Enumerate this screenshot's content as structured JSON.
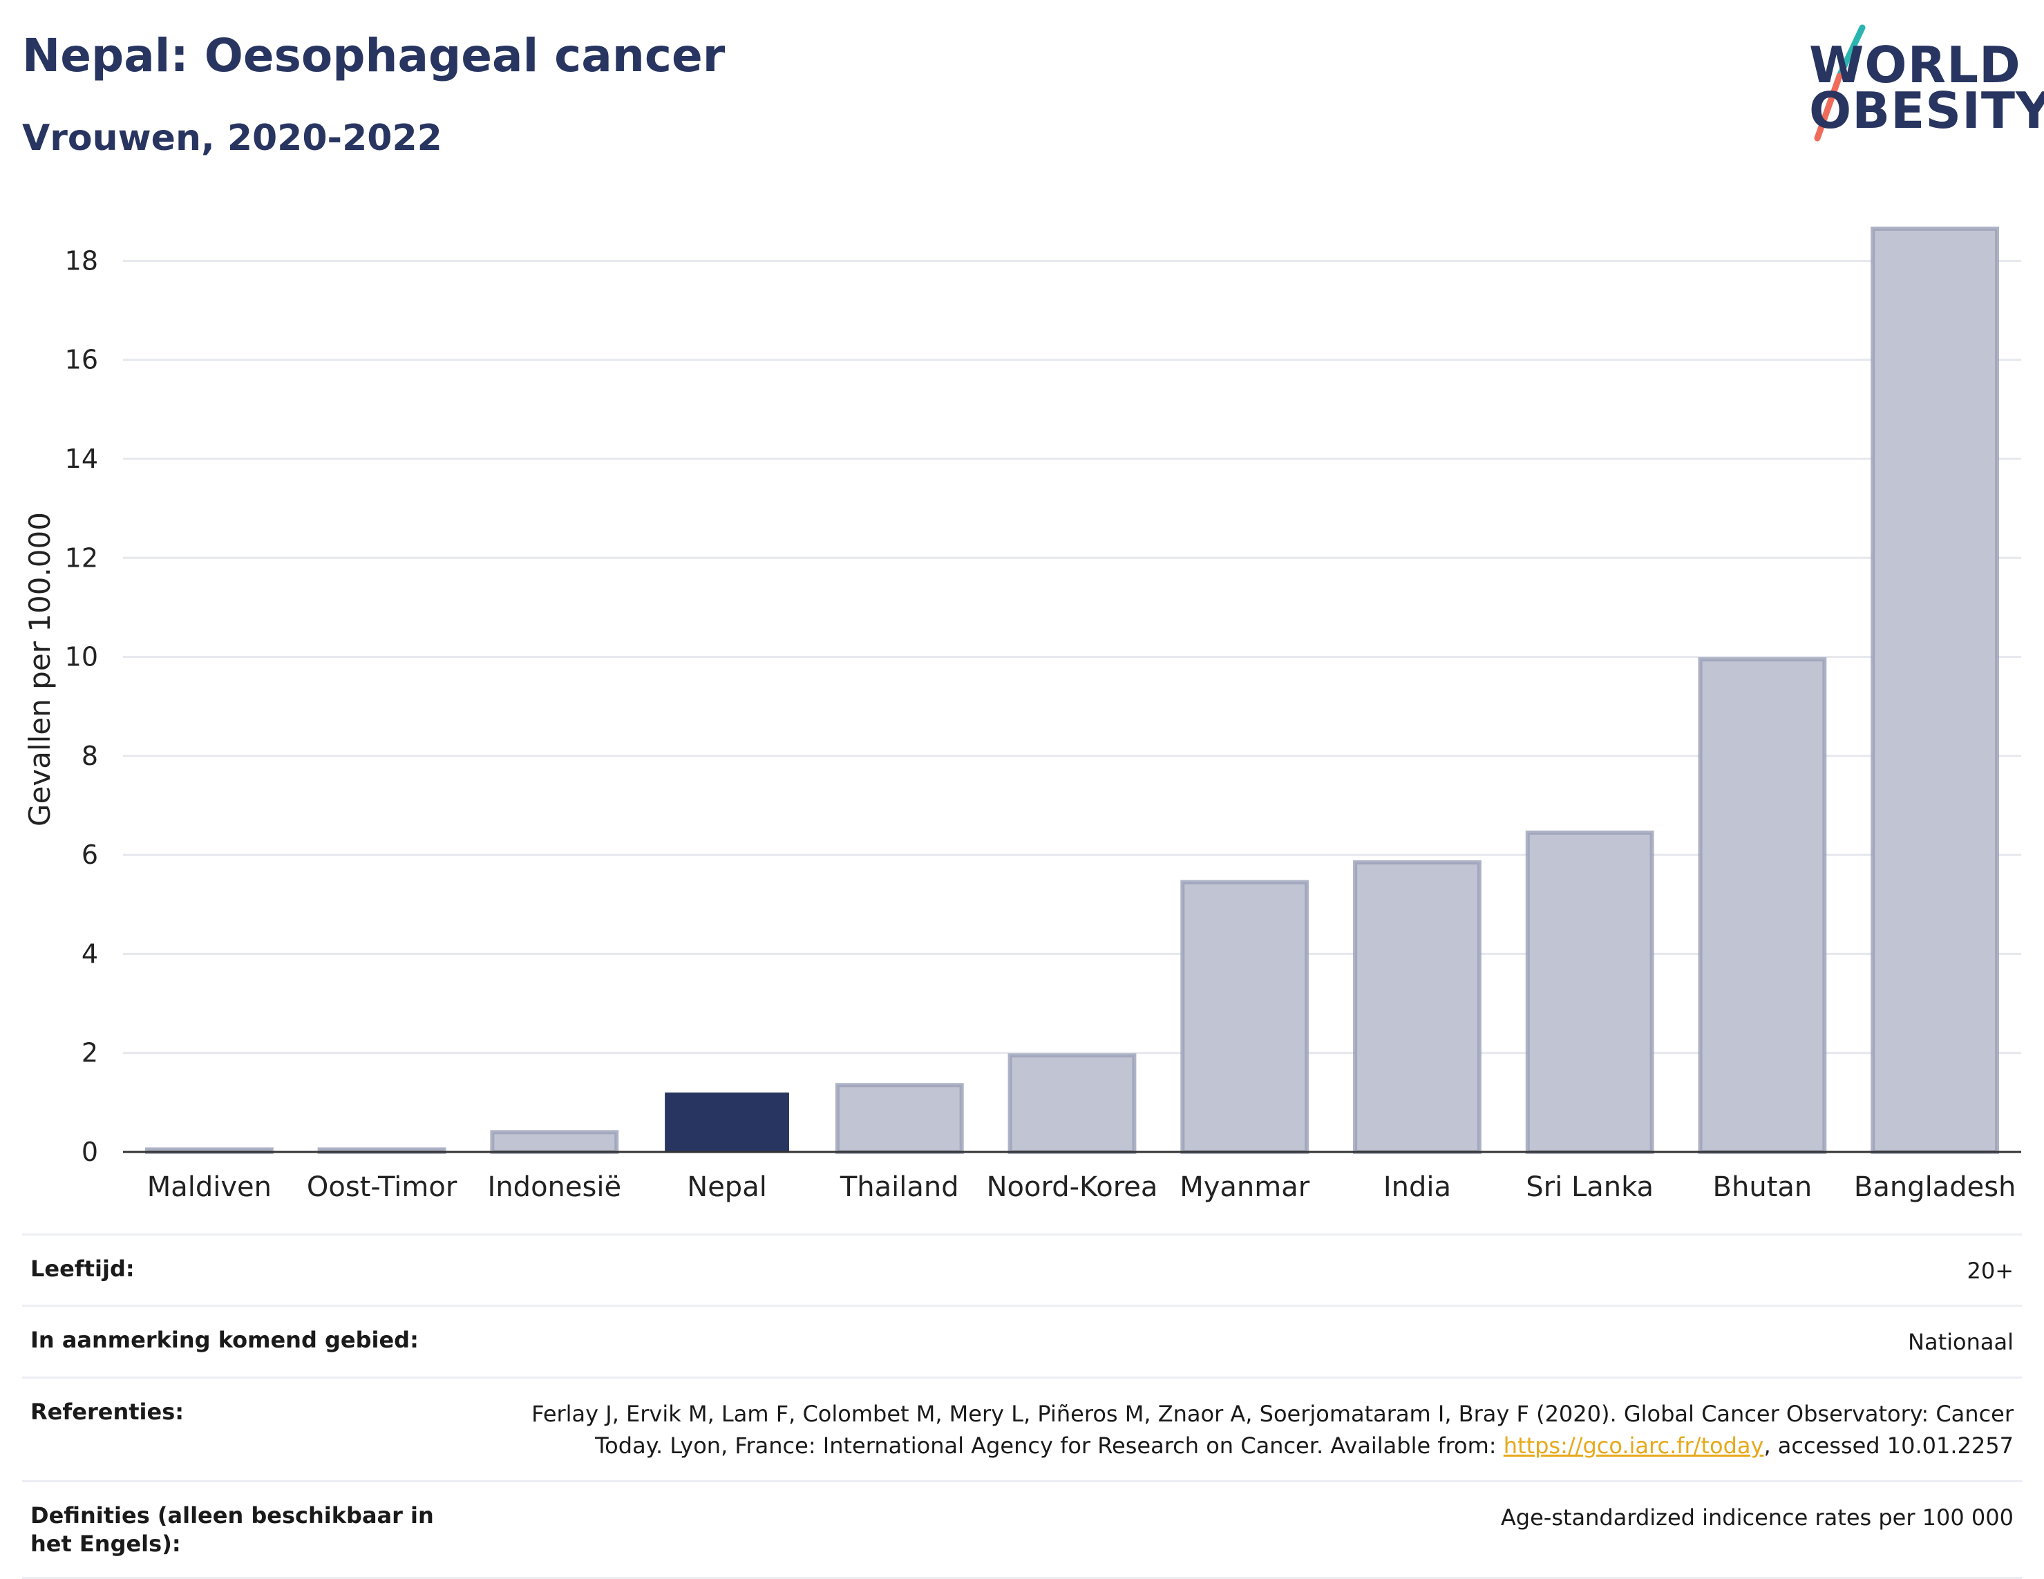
{
  "header": {
    "title": "Nepal: Oesophageal cancer",
    "subtitle": "Vrouwen, 2020-2022"
  },
  "logo": {
    "line1": "WORLD",
    "line2": "OBESITY",
    "colors": {
      "text": "#283561",
      "teal": "#2bb5b0",
      "coral": "#ef6b5a"
    }
  },
  "chart_data": {
    "type": "bar",
    "categories": [
      "Maldiven",
      "Oost-Timor",
      "Indonesië",
      "Nepal",
      "Thailand",
      "Noord-Korea",
      "Myanmar",
      "India",
      "Sri Lanka",
      "Bhutan",
      "Bangladesh"
    ],
    "values": [
      0.05,
      0.05,
      0.4,
      1.2,
      1.35,
      1.95,
      5.45,
      5.85,
      6.45,
      9.95,
      18.65
    ],
    "highlight": "Nepal",
    "ylabel": "Gevallen per 100.000",
    "xlabel": "",
    "ylim": [
      0,
      19.5
    ],
    "yticks": [
      0,
      2,
      4,
      6,
      8,
      10,
      12,
      14,
      16,
      18
    ],
    "grid": true,
    "colors": {
      "bar": "#c1c4d2",
      "bar_edge": "#9aa0b8",
      "highlight": "#283561",
      "grid": "#e6e8ee",
      "axis": "#333333"
    }
  },
  "footer": {
    "rows": [
      {
        "label": "Leeftijd:",
        "value": "20+"
      },
      {
        "label": "In aanmerking komend gebied:",
        "value": "Nationaal"
      },
      {
        "label": "Referenties:",
        "value_pre": "Ferlay J, Ervik M, Lam F, Colombet M, Mery L, Piñeros M, Znaor A, Soerjomataram I, Bray F (2020). Global Cancer Observatory: Cancer Today. Lyon, France: International Agency for Research on Cancer. Available from: ",
        "link": "https://gco.iarc.fr/today",
        "value_post": ", accessed 10.01.2257"
      },
      {
        "label": "Definities (alleen beschikbaar in het Engels):",
        "value": "Age-standardized indicence rates per 100 000"
      }
    ]
  }
}
